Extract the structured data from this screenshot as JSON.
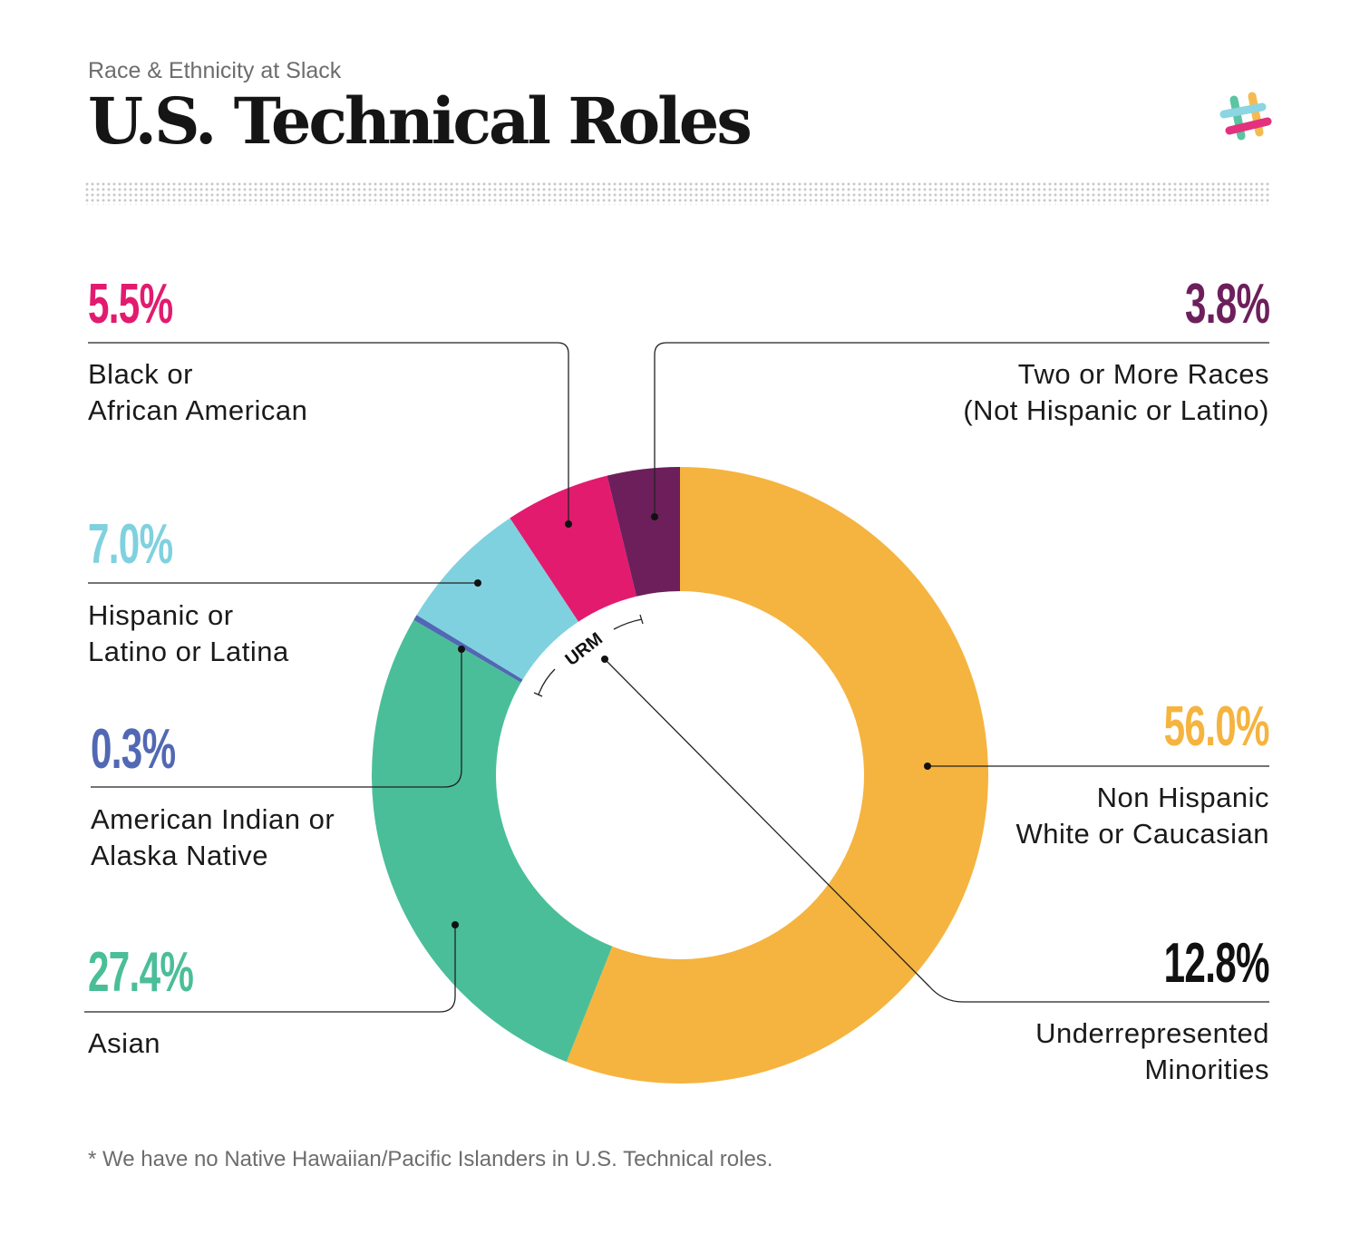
{
  "header": {
    "subtitle": "Race & Ethnicity at Slack",
    "title": "U.S. Technical Roles",
    "logo": "slack-hash-logo"
  },
  "chart_data": {
    "type": "pie",
    "style": "donut",
    "start": "top, clockwise",
    "slices": [
      {
        "label": "Non Hispanic White or Caucasian",
        "line1": "Non Hispanic",
        "line2": "White or Caucasian",
        "value": 56.0,
        "display": "56.0%",
        "color": "#F5B43F"
      },
      {
        "label": "Asian",
        "line1": "Asian",
        "line2": "",
        "value": 27.4,
        "display": "27.4%",
        "color": "#4ABE98"
      },
      {
        "label": "American Indian or Alaska Native",
        "line1": "American Indian or",
        "line2": "Alaska Native",
        "value": 0.3,
        "display": "0.3%",
        "color": "#5168B4"
      },
      {
        "label": "Hispanic or Latino or Latina",
        "line1": "Hispanic or",
        "line2": "Latino or Latina",
        "value": 7.0,
        "display": "7.0%",
        "color": "#80D1DF"
      },
      {
        "label": "Black or African American",
        "line1": "Black or",
        "line2": "African American",
        "value": 5.5,
        "display": "5.5%",
        "color": "#E21B6F"
      },
      {
        "label": "Two or More Races (Not Hispanic or Latino)",
        "line1": "Two or More Races",
        "line2": "(Not Hispanic or Latino)",
        "value": 3.8,
        "display": "3.8%",
        "color": "#6D1F5B"
      }
    ],
    "annotation": {
      "label": "URM",
      "value_display": "12.8%",
      "line1": "Underrepresented",
      "line2": "Minorities",
      "color": "#111111"
    }
  },
  "footnote": "* We have no Native Hawaiian/Pacific Islanders in U.S. Technical roles."
}
